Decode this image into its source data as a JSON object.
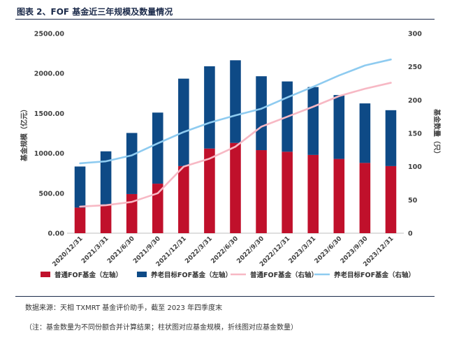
{
  "header": {
    "title": "图表 2、FOF 基金近三年规模及数量情况"
  },
  "footer": {
    "source": "数据来源：天相 TXMRT 基金评价助手，截至 2023 年四季度末",
    "note": "（注：基金数量为不同份额合并计算结果；柱状图对应基金规模，折线图对应基金数量）"
  },
  "colors": {
    "bar_regular": "#c0102b",
    "bar_pension": "#0e4a86",
    "line_regular": "#f7b8c4",
    "line_pension": "#8ecbf0"
  },
  "chart_data": {
    "type": "bar",
    "title": "",
    "categories": [
      "2020/12/31",
      "2021/3/31",
      "2021/6/30",
      "2021/9/30",
      "2021/12/31",
      "2022/3/31",
      "2022/6/30",
      "2022/9/30",
      "2022/12/31",
      "2023/3/31",
      "2023/6/30",
      "2023/9/30",
      "2023/12/31"
    ],
    "ylabel_left": "基金规模（亿元）",
    "ylabel_right": "基金数量（只）",
    "ylim_left": [
      0,
      2500
    ],
    "yticks_left": [
      "0.00",
      "500.00",
      "1000.00",
      "1500.00",
      "2000.00",
      "2500.00"
    ],
    "ylim_right": [
      0,
      300
    ],
    "yticks_right": [
      "0",
      "50",
      "100",
      "150",
      "200",
      "250",
      "300"
    ],
    "stacked": true,
    "series": [
      {
        "name": "普通FOF基金（左轴）",
        "kind": "bar",
        "axis": "left",
        "values": [
          320,
          360,
          490,
          620,
          840,
          1060,
          1130,
          1040,
          1020,
          980,
          930,
          880,
          840
        ]
      },
      {
        "name": "养老目标FOF基金（左轴）",
        "kind": "bar",
        "axis": "left",
        "values": [
          515,
          665,
          765,
          890,
          1095,
          1030,
          1035,
          925,
          880,
          850,
          800,
          745,
          700
        ]
      },
      {
        "name": "普通FOF基金（右轴）",
        "kind": "line",
        "axis": "right",
        "values": [
          40,
          42,
          47,
          60,
          100,
          112,
          130,
          160,
          175,
          190,
          206,
          217,
          226
        ]
      },
      {
        "name": "养老目标FOF基金（右轴）",
        "kind": "line",
        "axis": "right",
        "values": [
          105,
          108,
          117,
          135,
          152,
          166,
          177,
          187,
          204,
          220,
          237,
          252,
          261
        ]
      }
    ],
    "legend_position": "bottom",
    "grid": false
  }
}
